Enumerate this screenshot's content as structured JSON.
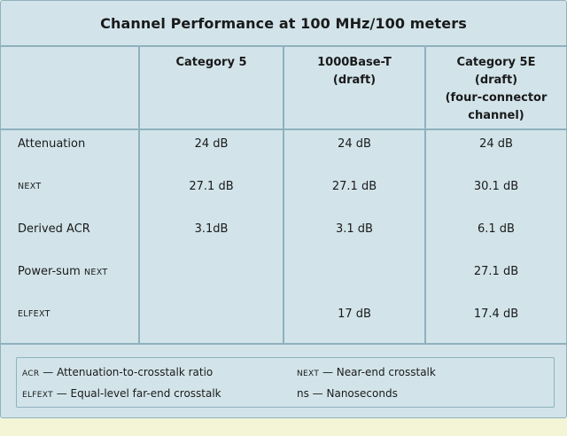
{
  "table": {
    "title": "Channel Performance at 100 MHz/100 meters",
    "columns": [
      {
        "lines": [
          "Category 5"
        ]
      },
      {
        "lines": [
          "1000Base-T",
          "(draft)"
        ]
      },
      {
        "lines": [
          "Category 5E",
          "(draft)",
          "(four-connector",
          "channel)"
        ]
      }
    ],
    "rows": [
      {
        "label": "Attenuation",
        "values": [
          "24 dB",
          "24 dB",
          "24 dB"
        ]
      },
      {
        "label": "NEXT",
        "values": [
          "27.1 dB",
          "27.1 dB",
          "30.1 dB"
        ]
      },
      {
        "label": "Derived ACR",
        "values": [
          "3.1dB",
          "3.1 dB",
          "6.1 dB"
        ]
      },
      {
        "label_prefix": "Power-sum ",
        "label_sc": "NEXT",
        "values": [
          "",
          "",
          "27.1 dB"
        ]
      },
      {
        "label": "ELFEXT",
        "values": [
          "",
          "17 dB",
          "17.4 dB"
        ]
      }
    ]
  },
  "legend": [
    {
      "abbr": "ACR",
      "text": " — Attenuation-to-crosstalk ratio"
    },
    {
      "abbr": "NEXT",
      "text": " — Near-end crosstalk"
    },
    {
      "abbr": "ELFEXT",
      "text": " — Equal-level far-end crosstalk"
    },
    {
      "abbr": "ns",
      "text": " — Nanoseconds"
    }
  ]
}
